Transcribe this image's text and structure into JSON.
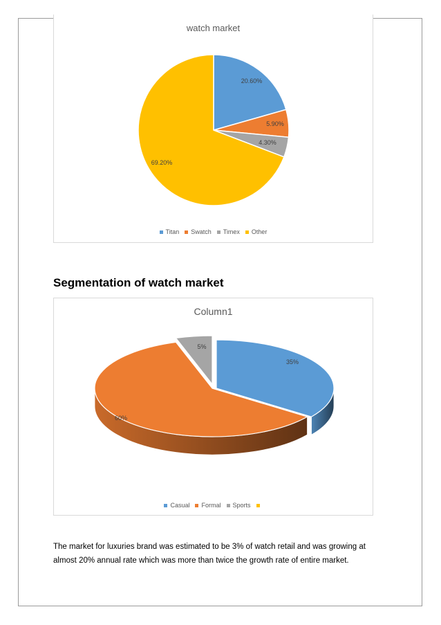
{
  "heading": "Segmentation of watch market",
  "paragraph": {
    "line1": "The market for luxuries brand was estimated to be 3% of watch retail and was growing at",
    "line2": "almost 20% annual rate which was more than twice the growth rate of entire market."
  },
  "chart_data": [
    {
      "type": "pie",
      "title": "watch market",
      "categories": [
        "Titan",
        "Swatch",
        "Timex",
        "Other"
      ],
      "values": [
        20.6,
        5.9,
        4.3,
        69.2
      ],
      "labels": [
        "20.60%",
        "5.90%",
        "4.30%",
        "69.20%"
      ],
      "colors": [
        "#5b9bd5",
        "#ed7d31",
        "#a5a5a5",
        "#ffc000"
      ],
      "legend_position": "bottom"
    },
    {
      "type": "pie",
      "style": "3d",
      "title": "Column1",
      "categories": [
        "Casual",
        "Formal",
        "Sports",
        ""
      ],
      "values": [
        35,
        60,
        5
      ],
      "labels": [
        "35%",
        "60%",
        "5%"
      ],
      "colors": [
        "#5b9bd5",
        "#ed7d31",
        "#a5a5a5",
        "#ffc000"
      ],
      "legend_position": "bottom"
    }
  ]
}
